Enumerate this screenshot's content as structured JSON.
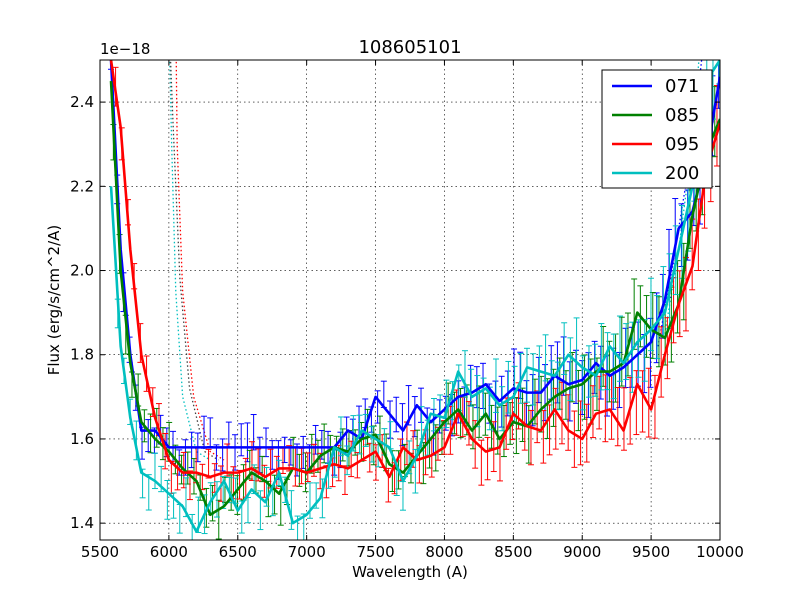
{
  "chart_data": {
    "type": "line",
    "title": "108605101",
    "xlabel": "Wavelength (A)",
    "ylabel": "Flux (erg/s/cm^2/A)",
    "offset_text": "1e−18",
    "xlim": [
      5500,
      10000
    ],
    "ylim": [
      1.36,
      2.5
    ],
    "scale": 1e-18,
    "grid": true,
    "legend_position": "top-right",
    "x_ticks": [
      5500,
      6000,
      6500,
      7000,
      7500,
      8000,
      8500,
      9000,
      9500,
      10000
    ],
    "y_ticks": [
      1.4,
      1.6,
      1.8,
      2.0,
      2.2,
      2.4
    ],
    "x_tick_labels": [
      "5500",
      "6000",
      "6500",
      "7000",
      "7500",
      "8000",
      "8500",
      "9000",
      "9500",
      "10000"
    ],
    "y_tick_labels": [
      "1.4",
      "1.6",
      "1.8",
      "2.0",
      "2.2",
      "2.4"
    ],
    "series": [
      {
        "name": "071",
        "color": "#0000ff",
        "x": [
          5580,
          5650,
          5720,
          5800,
          5900,
          6000,
          6100,
          6200,
          6400,
          6600,
          6800,
          6900,
          7000,
          7100,
          7200,
          7300,
          7400,
          7500,
          7600,
          7700,
          7800,
          7900,
          8000,
          8100,
          8200,
          8300,
          8400,
          8500,
          8600,
          8700,
          8800,
          8900,
          9000,
          9100,
          9200,
          9300,
          9400,
          9500,
          9600,
          9700,
          9800,
          9900,
          10000
        ],
        "y": [
          2.5,
          2.05,
          1.8,
          1.62,
          1.62,
          1.58,
          1.58,
          1.58,
          1.58,
          1.58,
          1.58,
          1.58,
          1.58,
          1.58,
          1.58,
          1.62,
          1.6,
          1.7,
          1.66,
          1.62,
          1.68,
          1.64,
          1.67,
          1.7,
          1.71,
          1.73,
          1.69,
          1.72,
          1.71,
          1.71,
          1.75,
          1.73,
          1.74,
          1.78,
          1.75,
          1.77,
          1.8,
          1.83,
          1.93,
          2.1,
          2.14,
          2.27,
          2.46
        ]
      },
      {
        "name": "085",
        "color": "#008000",
        "x": [
          5580,
          5650,
          5720,
          5800,
          5900,
          6000,
          6100,
          6200,
          6300,
          6400,
          6500,
          6600,
          6700,
          6800,
          6900,
          7000,
          7100,
          7200,
          7300,
          7400,
          7500,
          7600,
          7700,
          7800,
          7900,
          8000,
          8100,
          8200,
          8300,
          8400,
          8500,
          8600,
          8700,
          8800,
          8900,
          9000,
          9100,
          9200,
          9300,
          9400,
          9500,
          9600,
          9700,
          9800,
          9900,
          10000
        ],
        "y": [
          2.45,
          2.0,
          1.78,
          1.64,
          1.6,
          1.57,
          1.53,
          1.5,
          1.42,
          1.44,
          1.48,
          1.52,
          1.5,
          1.47,
          1.53,
          1.52,
          1.56,
          1.58,
          1.57,
          1.6,
          1.61,
          1.54,
          1.52,
          1.56,
          1.6,
          1.64,
          1.67,
          1.62,
          1.66,
          1.6,
          1.64,
          1.63,
          1.67,
          1.7,
          1.72,
          1.73,
          1.76,
          1.76,
          1.78,
          1.9,
          1.86,
          1.84,
          1.92,
          2.13,
          2.28,
          2.36
        ]
      },
      {
        "name": "095",
        "color": "#ff0000",
        "x": [
          5580,
          5650,
          5720,
          5800,
          5900,
          6000,
          6100,
          6200,
          6300,
          6400,
          6500,
          6600,
          6700,
          6800,
          6900,
          7000,
          7100,
          7200,
          7300,
          7400,
          7500,
          7600,
          7700,
          7800,
          7900,
          8000,
          8100,
          8200,
          8300,
          8400,
          8500,
          8600,
          8700,
          8800,
          8900,
          9000,
          9100,
          9200,
          9300,
          9400,
          9500,
          9600,
          9700,
          9800,
          9900,
          10000
        ],
        "y": [
          2.5,
          2.34,
          2.05,
          1.8,
          1.65,
          1.55,
          1.52,
          1.52,
          1.51,
          1.52,
          1.52,
          1.53,
          1.51,
          1.53,
          1.53,
          1.52,
          1.53,
          1.54,
          1.53,
          1.55,
          1.57,
          1.51,
          1.58,
          1.55,
          1.56,
          1.58,
          1.66,
          1.6,
          1.57,
          1.58,
          1.66,
          1.63,
          1.62,
          1.67,
          1.62,
          1.6,
          1.66,
          1.67,
          1.62,
          1.73,
          1.67,
          1.8,
          1.92,
          2.01,
          2.24,
          2.35
        ]
      },
      {
        "name": "200",
        "color": "#00bfbf",
        "x": [
          5580,
          5650,
          5720,
          5800,
          5900,
          6000,
          6100,
          6200,
          6300,
          6400,
          6500,
          6600,
          6700,
          6800,
          6900,
          7000,
          7100,
          7200,
          7300,
          7400,
          7500,
          7600,
          7700,
          7800,
          7900,
          8000,
          8100,
          8200,
          8300,
          8400,
          8500,
          8600,
          8700,
          8800,
          8900,
          9000,
          9100,
          9200,
          9300,
          9400,
          9500,
          9600,
          9700,
          9800,
          9900,
          10000
        ],
        "y": [
          2.2,
          1.82,
          1.65,
          1.52,
          1.5,
          1.47,
          1.44,
          1.38,
          1.45,
          1.5,
          1.43,
          1.48,
          1.45,
          1.52,
          1.4,
          1.42,
          1.46,
          1.58,
          1.56,
          1.62,
          1.6,
          1.58,
          1.5,
          1.56,
          1.66,
          1.65,
          1.76,
          1.7,
          1.72,
          1.68,
          1.7,
          1.77,
          1.76,
          1.75,
          1.8,
          1.77,
          1.75,
          1.82,
          1.78,
          1.83,
          1.86,
          1.9,
          2.05,
          2.2,
          2.45,
          2.5
        ]
      }
    ]
  }
}
